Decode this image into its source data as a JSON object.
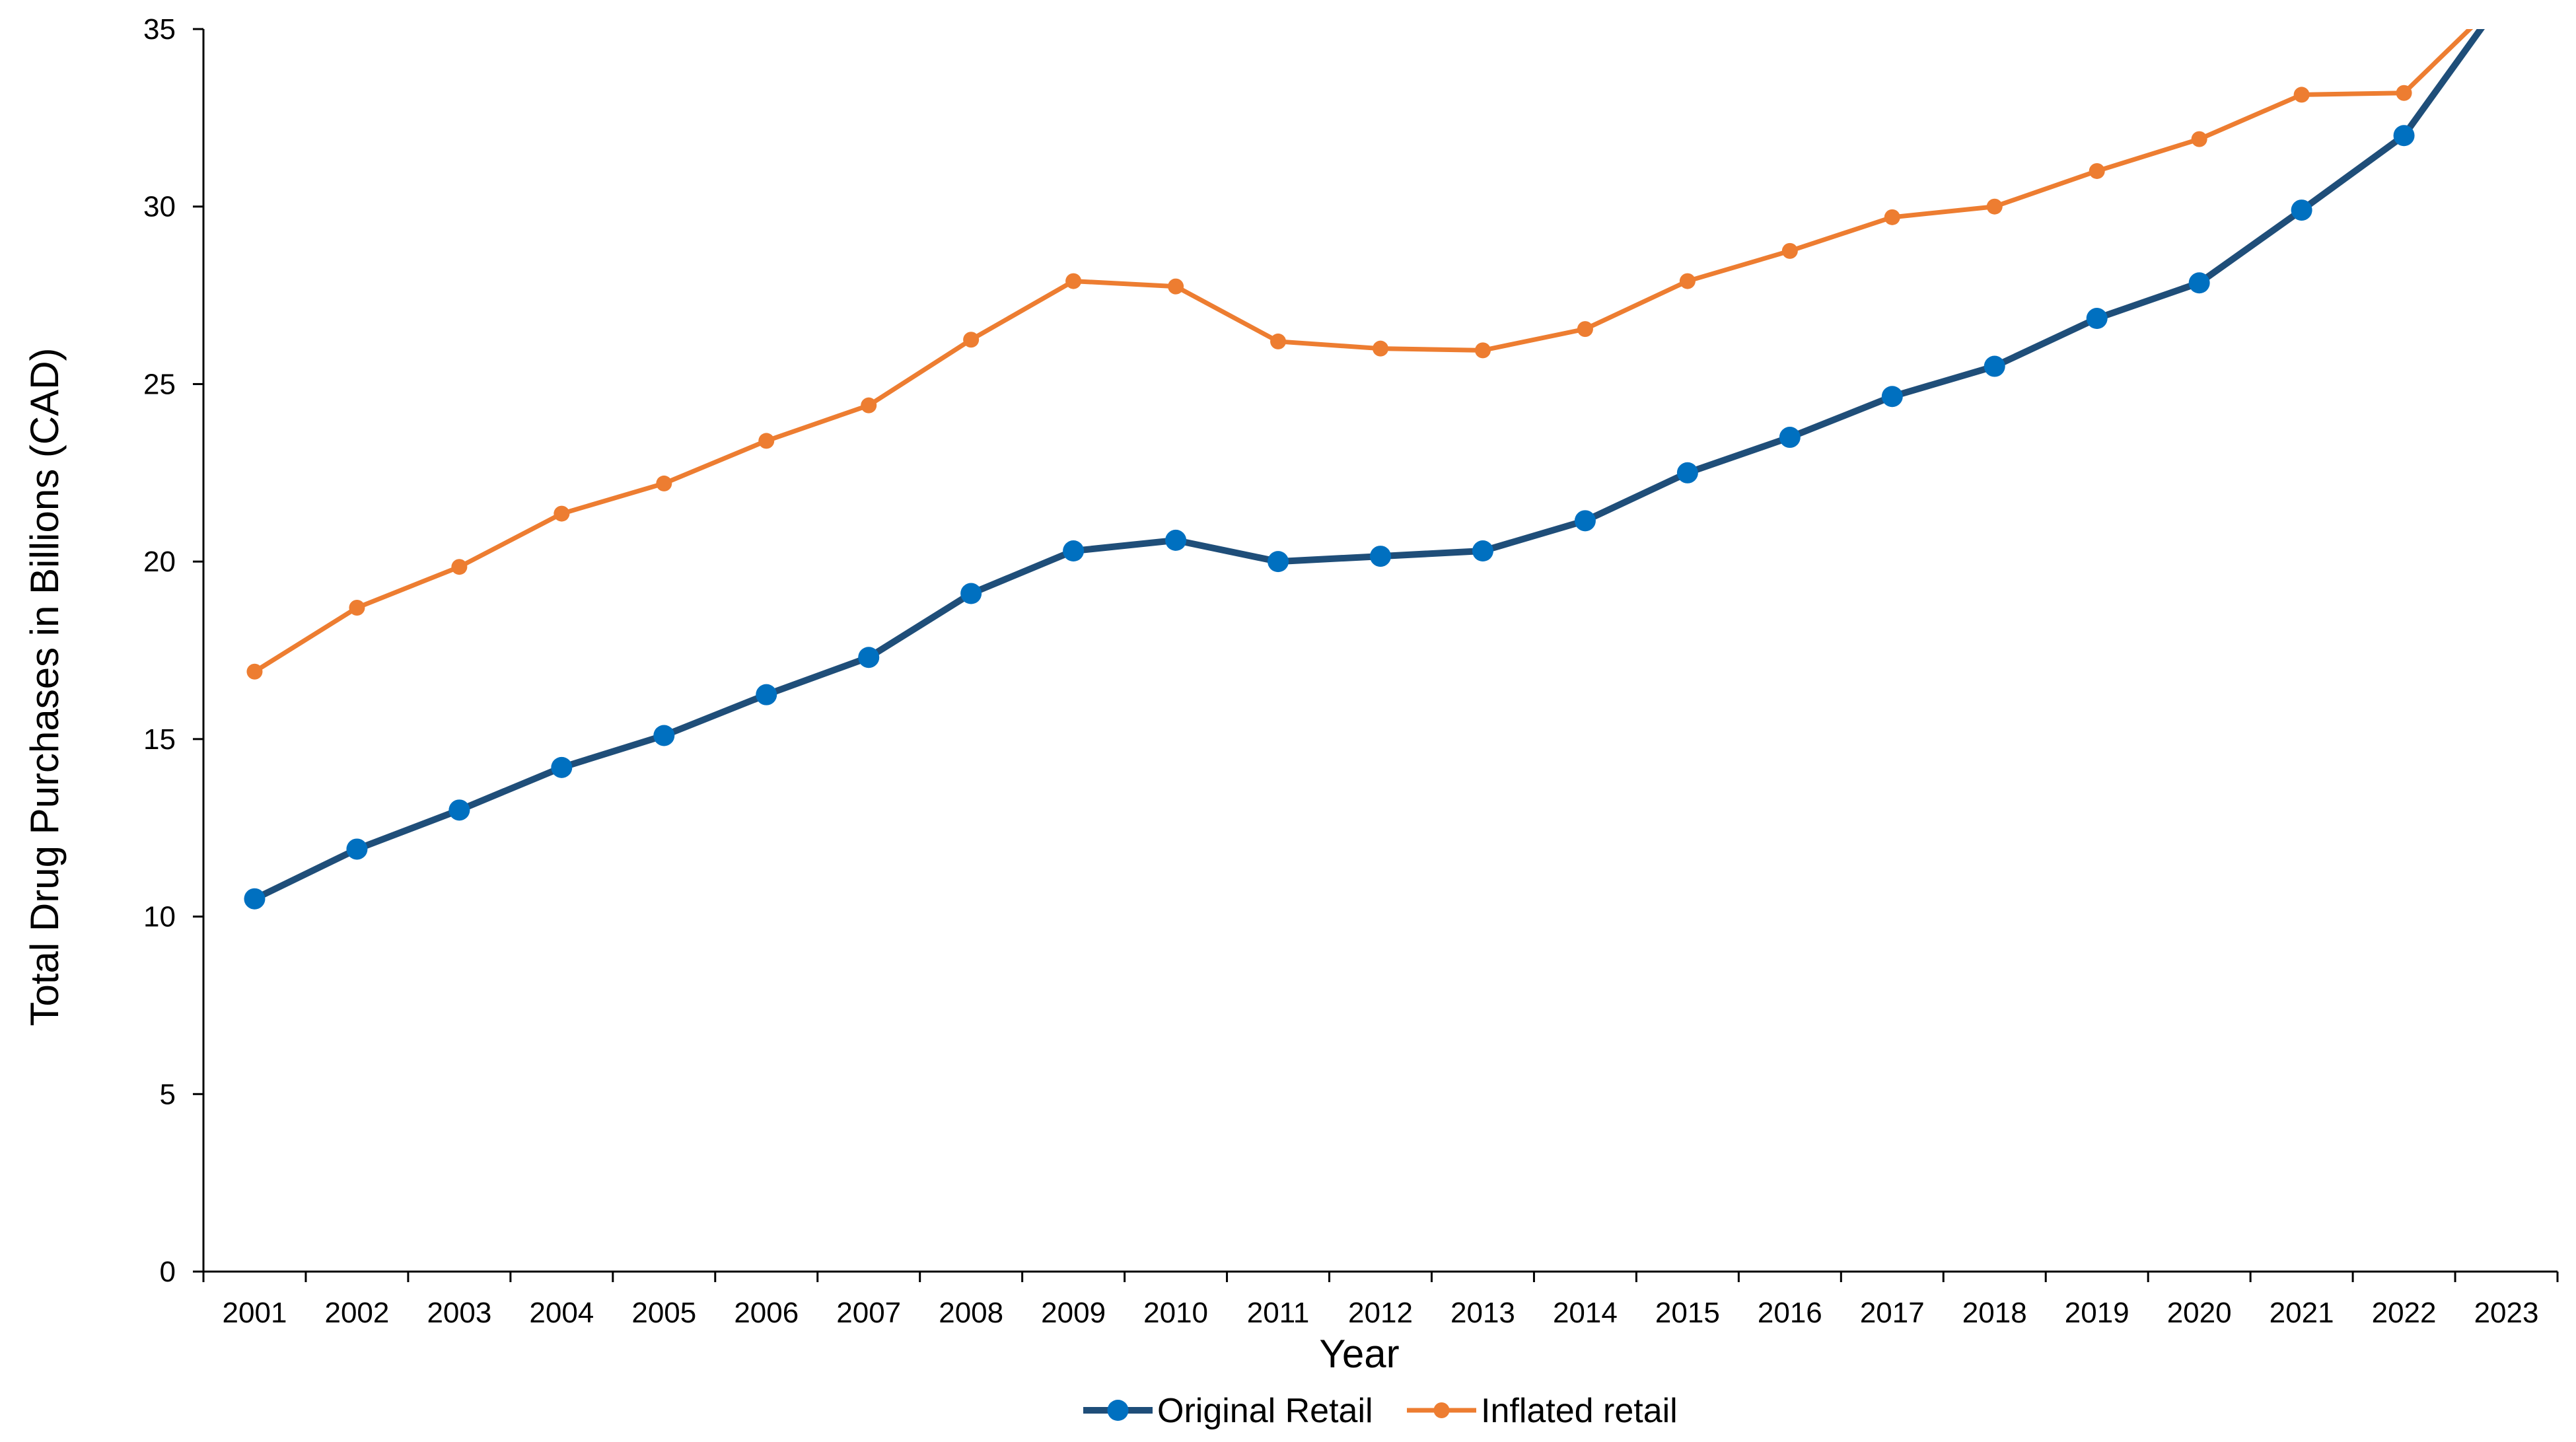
{
  "chart_data": {
    "type": "line",
    "xlabel": "Year",
    "ylabel": "Total Drug Purchases in Billions (CAD)",
    "ylim": [
      0,
      35
    ],
    "yticks": [
      0,
      5,
      10,
      15,
      20,
      25,
      30,
      35
    ],
    "categories": [
      "2001",
      "2002",
      "2003",
      "2004",
      "2005",
      "2006",
      "2007",
      "2008",
      "2009",
      "2010",
      "2011",
      "2012",
      "2013",
      "2014",
      "2015",
      "2016",
      "2017",
      "2018",
      "2019",
      "2020",
      "2021",
      "2022",
      "2023"
    ],
    "series": [
      {
        "name": "Original Retail",
        "color": "#1f4e79",
        "marker_color": "#0070c0",
        "values": [
          10.5,
          11.9,
          13.0,
          14.2,
          15.1,
          16.25,
          17.3,
          19.1,
          20.3,
          20.6,
          20.0,
          20.15,
          20.3,
          21.15,
          22.5,
          23.5,
          24.65,
          25.5,
          26.85,
          27.85,
          29.9,
          32.0,
          36.0
        ]
      },
      {
        "name": "Inflated retail",
        "color": "#ed7d31",
        "marker_color": "#ed7d31",
        "values": [
          16.9,
          18.7,
          19.85,
          21.35,
          22.2,
          23.4,
          24.4,
          26.25,
          27.9,
          27.75,
          26.2,
          26.0,
          25.95,
          26.55,
          27.9,
          28.75,
          29.7,
          30.0,
          31.0,
          31.9,
          33.15,
          33.2,
          36.0
        ]
      }
    ],
    "grid": false,
    "legend": "bottom-center"
  }
}
